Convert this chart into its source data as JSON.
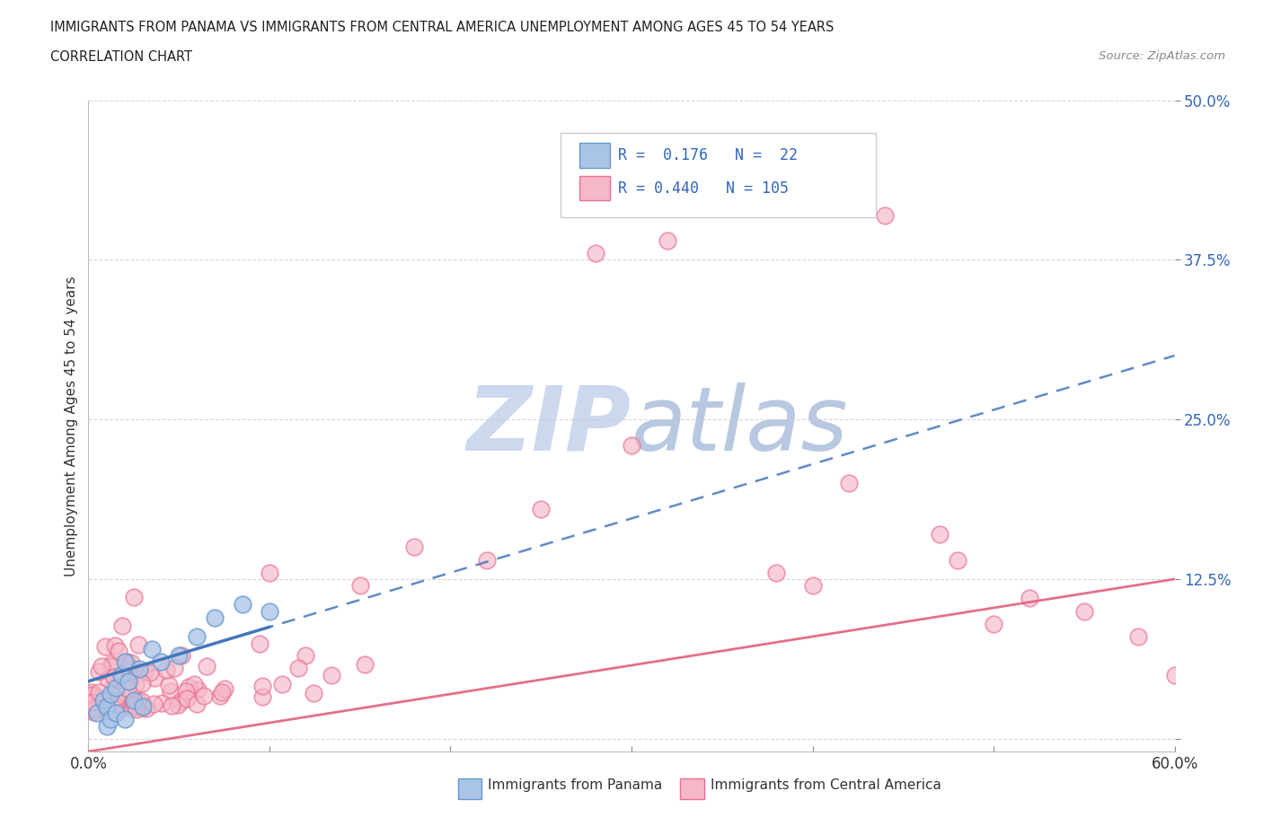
{
  "title_line1": "IMMIGRANTS FROM PANAMA VS IMMIGRANTS FROM CENTRAL AMERICA UNEMPLOYMENT AMONG AGES 45 TO 54 YEARS",
  "title_line2": "CORRELATION CHART",
  "source_text": "Source: ZipAtlas.com",
  "ylabel": "Unemployment Among Ages 45 to 54 years",
  "xlim": [
    0.0,
    0.6
  ],
  "ylim": [
    -0.01,
    0.5
  ],
  "panama_R": 0.176,
  "panama_N": 22,
  "central_R": 0.44,
  "central_N": 105,
  "panama_color": "#aac4e8",
  "central_color": "#f5b8c8",
  "panama_edge_color": "#6699cc",
  "central_edge_color": "#e87090",
  "panama_line_color": "#4477bb",
  "central_line_color": "#e06080",
  "legend_text_color": "#3366bb",
  "watermark_color": "#ccd8ee",
  "legend_box_color": "#e8eef8"
}
